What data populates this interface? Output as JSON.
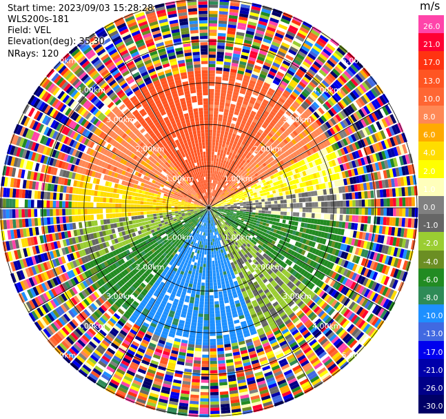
{
  "meta": {
    "start_time": "Start time: 2023/09/03 15:28:28",
    "instrument": "WLS200s-181",
    "field": "Field: VEL",
    "elevation": "Elevation(deg): 35.30",
    "nrays": "NRays: 120"
  },
  "colorbar": {
    "unit": "m/s",
    "bins": [
      {
        "label": "26.0",
        "color": "#ff44aa"
      },
      {
        "label": "21.0",
        "color": "#ff0033"
      },
      {
        "label": "17.0",
        "color": "#ff3311"
      },
      {
        "label": "13.0",
        "color": "#ff5522"
      },
      {
        "label": "10.0",
        "color": "#ff6633"
      },
      {
        "label": "8.0",
        "color": "#ff8855"
      },
      {
        "label": "6.0",
        "color": "#ffaa00"
      },
      {
        "label": "4.0",
        "color": "#ffdd00"
      },
      {
        "label": "2.0",
        "color": "#ffff00"
      },
      {
        "label": "1.0",
        "color": "#ffffbb"
      },
      {
        "label": "0.0",
        "color": "#808080"
      },
      {
        "label": "-1.0",
        "color": "#666666"
      },
      {
        "label": "-2.0",
        "color": "#9acd32"
      },
      {
        "label": "-4.0",
        "color": "#6b8e23"
      },
      {
        "label": "-6.0",
        "color": "#228b22"
      },
      {
        "label": "-8.0",
        "color": "#2e8b57"
      },
      {
        "label": "-10.0",
        "color": "#1e90ff"
      },
      {
        "label": "-13.0",
        "color": "#4169e1"
      },
      {
        "label": "-17.0",
        "color": "#0000ee"
      },
      {
        "label": "-21.0",
        "color": "#0000aa"
      },
      {
        "label": "-26.0",
        "color": "#000088"
      },
      {
        "label": "-30.0",
        "color": "#000066"
      }
    ]
  },
  "chart_data": {
    "type": "heatmap",
    "projection": "polar-ppi",
    "rays": 120,
    "range_rings_km": [
      1.0,
      2.0,
      3.0,
      4.0,
      5.0
    ],
    "range_ring_labels": [
      "1.00km",
      "2.00km",
      "3.00km",
      "4.00km",
      "5.00km"
    ],
    "spoke_directions_deg": [
      0,
      30,
      60,
      90,
      120,
      150,
      180,
      210,
      240,
      270,
      300,
      330
    ],
    "max_range_km": 5.0,
    "value_unit": "m/s",
    "clean_range_km": 3.3,
    "sectors": [
      {
        "az_from": 0,
        "az_to": 40,
        "dominant_value": 10.0
      },
      {
        "az_from": 40,
        "az_to": 62,
        "dominant_value": 8.0
      },
      {
        "az_from": 62,
        "az_to": 80,
        "dominant_value": 2.0
      },
      {
        "az_from": 80,
        "az_to": 95,
        "dominant_value": 0.0
      },
      {
        "az_from": 95,
        "az_to": 130,
        "dominant_value": -6.0
      },
      {
        "az_from": 130,
        "az_to": 160,
        "dominant_value": -2.0
      },
      {
        "az_from": 160,
        "az_to": 215,
        "dominant_value": -10.0
      },
      {
        "az_from": 215,
        "az_to": 245,
        "dominant_value": -6.0
      },
      {
        "az_from": 245,
        "az_to": 265,
        "dominant_value": -2.0
      },
      {
        "az_from": 265,
        "az_to": 285,
        "dominant_value": 4.0
      },
      {
        "az_from": 285,
        "az_to": 320,
        "dominant_value": 8.0
      },
      {
        "az_from": 320,
        "az_to": 360,
        "dominant_value": 13.0
      }
    ]
  }
}
